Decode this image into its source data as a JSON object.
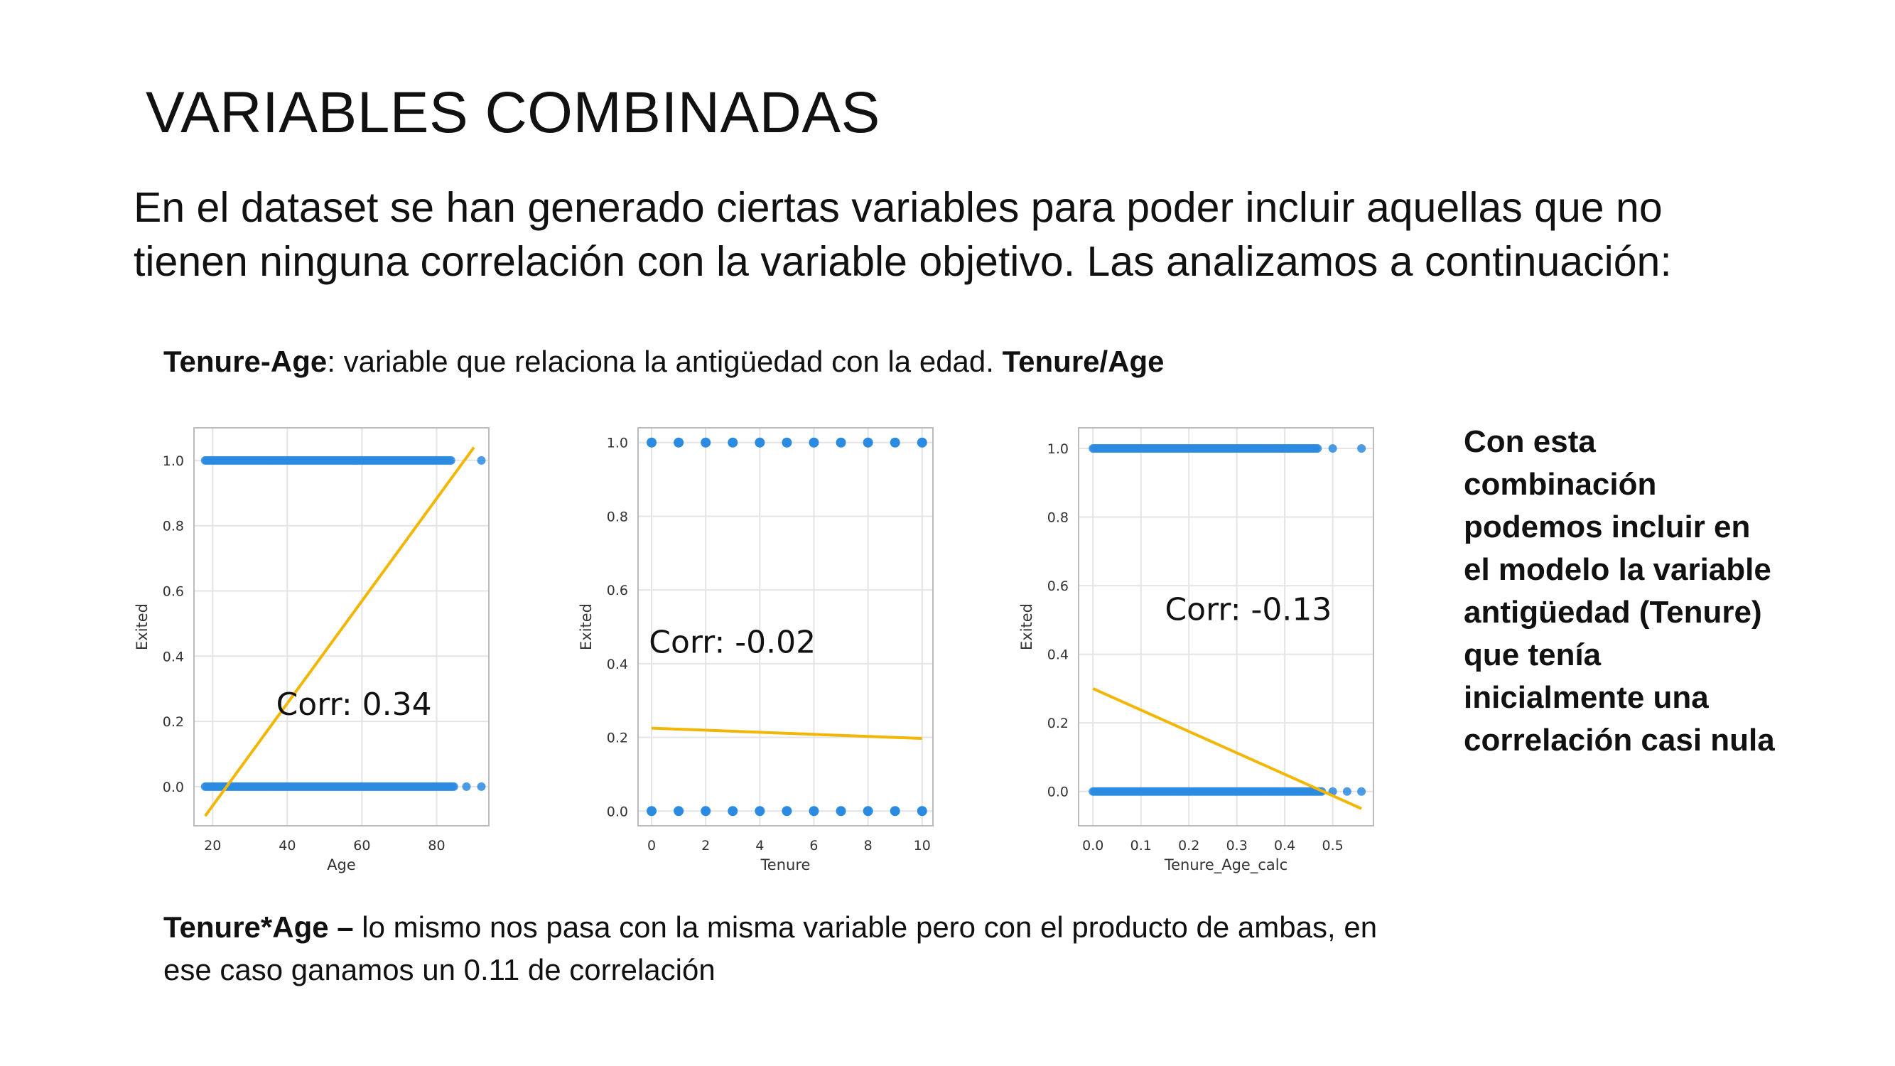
{
  "slide": {
    "title": "VARIABLES COMBINADAS",
    "intro_line1": "En el dataset se han generado ciertas variables para poder incluir aquellas que no",
    "intro_line2": "tienen ninguna correlación con la variable objetivo. Las analizamos a continuación:",
    "subtitle": {
      "bold_term": "Tenure-Age",
      "text": ": variable que relaciona la antigüedad con la edad. ",
      "bold_formula": "Tenure/Age"
    },
    "footer": {
      "bold_term": "Tenure*Age –",
      "text": " lo mismo nos pasa con la misma variable pero con el producto de ambas, en ese caso ganamos un 0.11 de correlación"
    },
    "note": "Con esta combinación podemos incluir en el modelo la variable antigüedad (Tenure) que tenía inicialmente una correlación casi nula"
  },
  "colors": {
    "points": "#2b8be0",
    "trend": "#f2b705",
    "grid": "#e4e4e4",
    "frame": "#bbbbbb"
  },
  "chart_data": [
    {
      "type": "scatter",
      "xlabel": "Age",
      "ylabel": "Exited",
      "xlim": [
        15,
        94
      ],
      "ylim": [
        -0.12,
        1.1
      ],
      "xticks": [
        20,
        40,
        60,
        80
      ],
      "yticks": [
        0.0,
        0.2,
        0.4,
        0.6,
        0.8,
        1.0
      ],
      "grid": true,
      "annotation": "Corr: 0.34",
      "annotation_pos": [
        37,
        0.22
      ],
      "point_ranges": [
        {
          "y": 1.0,
          "x_from": 18,
          "x_to": 84,
          "extra": [
            92
          ]
        },
        {
          "y": 0.0,
          "x_from": 18,
          "x_to": 85,
          "extra": [
            88,
            92
          ]
        }
      ],
      "trendline": [
        [
          18,
          -0.09
        ],
        [
          90,
          1.04
        ]
      ]
    },
    {
      "type": "scatter",
      "xlabel": "Tenure",
      "ylabel": "Exited",
      "xlim": [
        -0.5,
        10.4
      ],
      "ylim": [
        -0.04,
        1.04
      ],
      "xticks": [
        0,
        2,
        4,
        6,
        8,
        10
      ],
      "yticks": [
        0.0,
        0.2,
        0.4,
        0.6,
        0.8,
        1.0
      ],
      "grid": true,
      "annotation": "Corr: -0.02",
      "annotation_pos": [
        -0.1,
        0.43
      ],
      "points": [
        {
          "x": 0,
          "y": 1
        },
        {
          "x": 1,
          "y": 1
        },
        {
          "x": 2,
          "y": 1
        },
        {
          "x": 3,
          "y": 1
        },
        {
          "x": 4,
          "y": 1
        },
        {
          "x": 5,
          "y": 1
        },
        {
          "x": 6,
          "y": 1
        },
        {
          "x": 7,
          "y": 1
        },
        {
          "x": 8,
          "y": 1
        },
        {
          "x": 9,
          "y": 1
        },
        {
          "x": 10,
          "y": 1
        },
        {
          "x": 0,
          "y": 0
        },
        {
          "x": 1,
          "y": 0
        },
        {
          "x": 2,
          "y": 0
        },
        {
          "x": 3,
          "y": 0
        },
        {
          "x": 4,
          "y": 0
        },
        {
          "x": 5,
          "y": 0
        },
        {
          "x": 6,
          "y": 0
        },
        {
          "x": 7,
          "y": 0
        },
        {
          "x": 8,
          "y": 0
        },
        {
          "x": 9,
          "y": 0
        },
        {
          "x": 10,
          "y": 0
        }
      ],
      "trendline": [
        [
          0,
          0.225
        ],
        [
          10,
          0.197
        ]
      ]
    },
    {
      "type": "scatter",
      "xlabel": "Tenure_Age_calc",
      "ylabel": "Exited",
      "xlim": [
        -0.03,
        0.585
      ],
      "ylim": [
        -0.1,
        1.06
      ],
      "xticks": [
        0.0,
        0.1,
        0.2,
        0.3,
        0.4,
        0.5
      ],
      "yticks": [
        0.0,
        0.2,
        0.4,
        0.6,
        0.8,
        1.0
      ],
      "grid": true,
      "annotation": "Corr: -0.13",
      "annotation_pos": [
        0.15,
        0.5
      ],
      "point_ranges": [
        {
          "y": 1.0,
          "x_from": 0.0,
          "x_to": 0.47,
          "extra": [
            0.5,
            0.56
          ]
        },
        {
          "y": 0.0,
          "x_from": 0.0,
          "x_to": 0.48,
          "extra": [
            0.5,
            0.53,
            0.56
          ]
        }
      ],
      "trendline": [
        [
          0.0,
          0.3
        ],
        [
          0.56,
          -0.05
        ]
      ]
    }
  ]
}
